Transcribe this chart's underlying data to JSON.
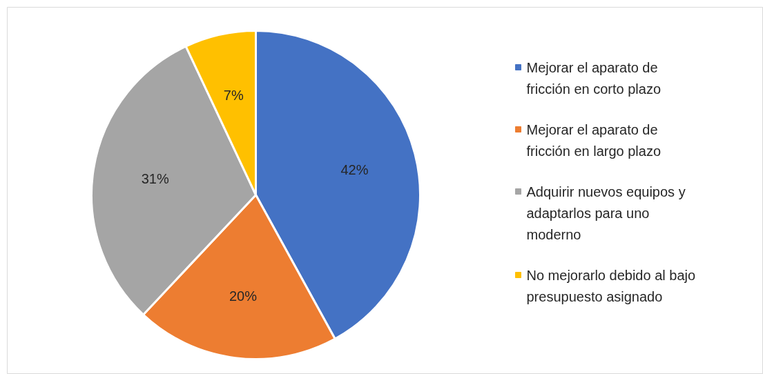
{
  "chart_data": {
    "type": "pie",
    "categories": [
      "Mejorar el aparato de fricción en corto plazo",
      "Mejorar el aparato de fricción en largo plazo",
      "Adquirir nuevos equipos y adaptarlos para uno moderno",
      "No mejorarlo debido al bajo presupuesto asignado"
    ],
    "values": [
      42,
      20,
      31,
      7
    ],
    "colors": [
      "#4472c4",
      "#ed7d31",
      "#a5a5a5",
      "#ffc000"
    ],
    "value_labels": [
      "42%",
      "20%",
      "31%",
      "7%"
    ],
    "legend": "right"
  }
}
